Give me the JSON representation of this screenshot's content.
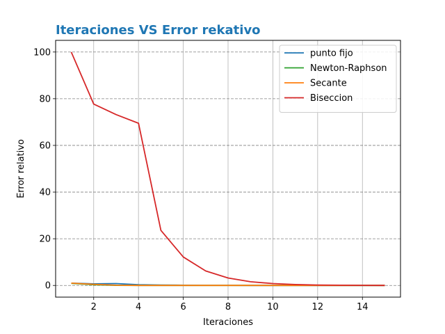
{
  "chart_data": {
    "type": "line",
    "title": "Iteraciones VS Error rekativo",
    "title_color": "#1f77b4",
    "xlabel": "Iteraciones",
    "ylabel": "Error relativo",
    "xlim": [
      0.3,
      15.7
    ],
    "ylim": [
      -5,
      105
    ],
    "xticks": [
      2,
      4,
      6,
      8,
      10,
      12,
      14
    ],
    "yticks": [
      0,
      20,
      40,
      60,
      80,
      100
    ],
    "grid": {
      "x": "solid-gray",
      "y": "dashed-gray"
    },
    "legend_position": "top-right",
    "series": [
      {
        "name": "punto fijo",
        "color": "#1f77b4",
        "x": [
          1,
          2,
          3,
          4,
          5,
          6,
          7,
          8,
          9,
          10,
          11,
          12,
          13,
          14,
          15
        ],
        "y": [
          1.0,
          0.7,
          0.8,
          0.3,
          0.2,
          0.1,
          0.05,
          0.03,
          0.02,
          0.01,
          0.01,
          0.0,
          0.0,
          0.0,
          0.0
        ]
      },
      {
        "name": "Newton-Raphson",
        "color": "#2ca02c",
        "x": [
          1,
          2,
          3,
          4,
          5,
          6,
          7,
          8,
          9,
          10,
          11,
          12,
          13,
          14,
          15
        ],
        "y": [
          0.9,
          0.3,
          0.05,
          0.0,
          0.0,
          0.0,
          0.0,
          0.0,
          0.0,
          0.0,
          0.0,
          0.0,
          0.0,
          0.0,
          0.0
        ]
      },
      {
        "name": "Secante",
        "color": "#ff7f0e",
        "x": [
          1,
          2,
          3,
          4,
          5,
          6,
          7,
          8,
          9,
          10,
          11,
          12,
          13,
          14,
          15
        ],
        "y": [
          1.0,
          0.5,
          0.1,
          0.01,
          0.0,
          0.0,
          0.0,
          0.0,
          0.0,
          0.0,
          0.0,
          0.0,
          0.0,
          0.0,
          0.0
        ]
      },
      {
        "name": "Biseccion",
        "color": "#d62728",
        "x": [
          1,
          2,
          3,
          4,
          5,
          6,
          7,
          8,
          9,
          10,
          11,
          12,
          13,
          14,
          15
        ],
        "y": [
          100,
          77.7,
          73.2,
          69.5,
          23.6,
          12.2,
          6.2,
          3.2,
          1.6,
          0.8,
          0.4,
          0.2,
          0.1,
          0.05,
          0.02
        ]
      }
    ]
  }
}
